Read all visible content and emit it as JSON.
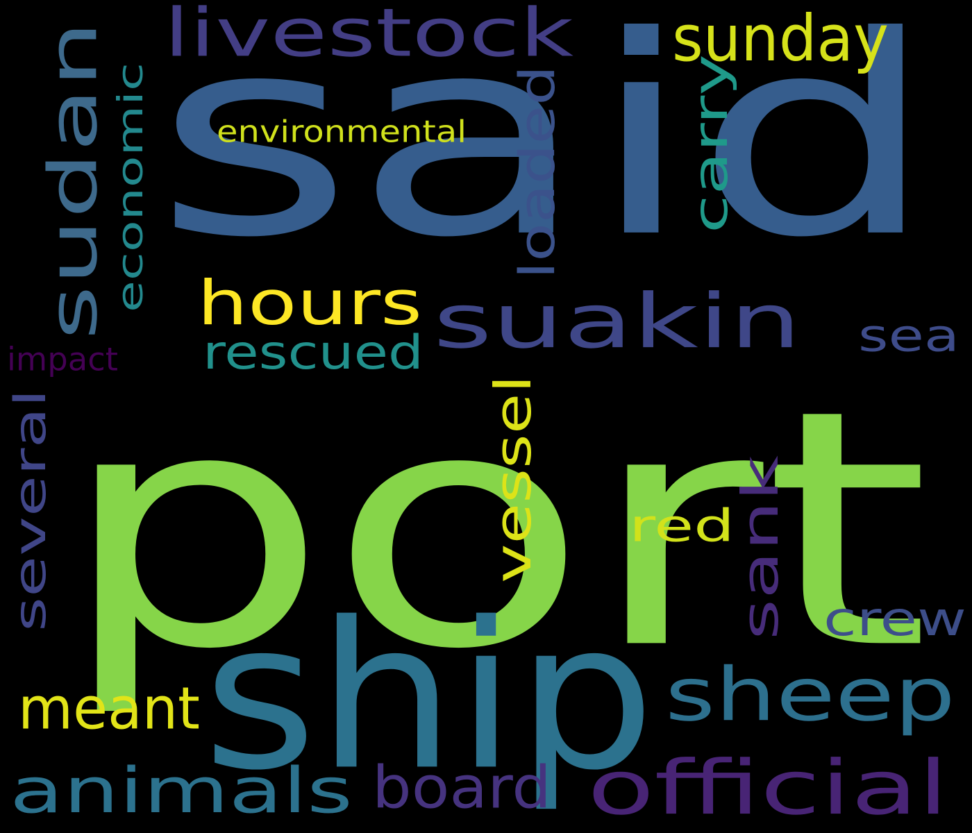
{
  "background": "#000000",
  "palette": {
    "blue": "#365d8d",
    "green": "#86d549",
    "teal": "#2c728e",
    "navy": "#3e4a89",
    "yellow": "#e4e419",
    "lime": "#d0e11c",
    "seagreen": "#21908d",
    "purple": "#482878",
    "indigo": "#414487",
    "deep-purple": "#440154"
  },
  "words": [
    {
      "text": "said",
      "color": "#365d8d"
    },
    {
      "text": "port",
      "color": "#86d549"
    },
    {
      "text": "ship",
      "color": "#2c728e"
    },
    {
      "text": "sudan",
      "color": "#3e6a8c"
    },
    {
      "text": "livestock",
      "color": "#433e85"
    },
    {
      "text": "sunday",
      "color": "#d6e21a"
    },
    {
      "text": "hours",
      "color": "#fde725"
    },
    {
      "text": "suakin",
      "color": "#3f4788"
    },
    {
      "text": "economic",
      "color": "#23898e"
    },
    {
      "text": "environmental",
      "color": "#d0e11c"
    },
    {
      "text": "loaded",
      "color": "#3b528b"
    },
    {
      "text": "carry",
      "color": "#1f9a8a"
    },
    {
      "text": "rescued",
      "color": "#21918c"
    },
    {
      "text": "sea",
      "color": "#3e4c8a"
    },
    {
      "text": "impact",
      "color": "#440154"
    },
    {
      "text": "several",
      "color": "#404688"
    },
    {
      "text": "vessel",
      "color": "#dde318"
    },
    {
      "text": "red",
      "color": "#d2e21b"
    },
    {
      "text": "sank",
      "color": "#472c7a"
    },
    {
      "text": "crew",
      "color": "#3d4e8a"
    },
    {
      "text": "sheep",
      "color": "#2d708e"
    },
    {
      "text": "meant",
      "color": "#e2e418"
    },
    {
      "text": "animals",
      "color": "#2c728e"
    },
    {
      "text": "board",
      "color": "#46337f"
    },
    {
      "text": "official",
      "color": "#482475"
    }
  ]
}
